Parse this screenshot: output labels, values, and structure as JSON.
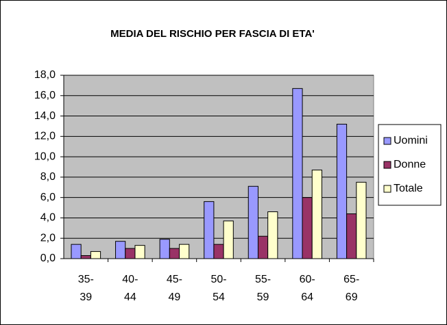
{
  "chart_data": {
    "type": "bar",
    "title": "MEDIA DEL RISCHIO PER FASCIA DI ETA'",
    "categories": [
      "35-39",
      "40-44",
      "45-49",
      "50-54",
      "55-59",
      "60-64",
      "65-69"
    ],
    "series": [
      {
        "name": "Uomini",
        "color": "#9999ff",
        "values": [
          1.4,
          1.7,
          1.9,
          5.6,
          7.1,
          16.7,
          13.2
        ]
      },
      {
        "name": "Donne",
        "color": "#993366",
        "values": [
          0.3,
          1.0,
          1.0,
          1.4,
          2.2,
          6.0,
          4.4
        ]
      },
      {
        "name": "Totale",
        "color": "#ffffcc",
        "values": [
          0.7,
          1.3,
          1.4,
          3.7,
          4.6,
          8.7,
          7.5
        ]
      }
    ],
    "ylim": [
      0,
      18
    ],
    "yticks": [
      {
        "value": 0,
        "label": "0,0"
      },
      {
        "value": 2,
        "label": "2,0"
      },
      {
        "value": 4,
        "label": "4,0"
      },
      {
        "value": 6,
        "label": "6,0"
      },
      {
        "value": 8,
        "label": "8,0"
      },
      {
        "value": 10,
        "label": "10,0"
      },
      {
        "value": 12,
        "label": "12,0"
      },
      {
        "value": 14,
        "label": "14,0"
      },
      {
        "value": 16,
        "label": "16,0"
      },
      {
        "value": 18,
        "label": "18,0"
      }
    ],
    "grid": true,
    "legend": "right",
    "plot_background": "#c0c0c0"
  }
}
